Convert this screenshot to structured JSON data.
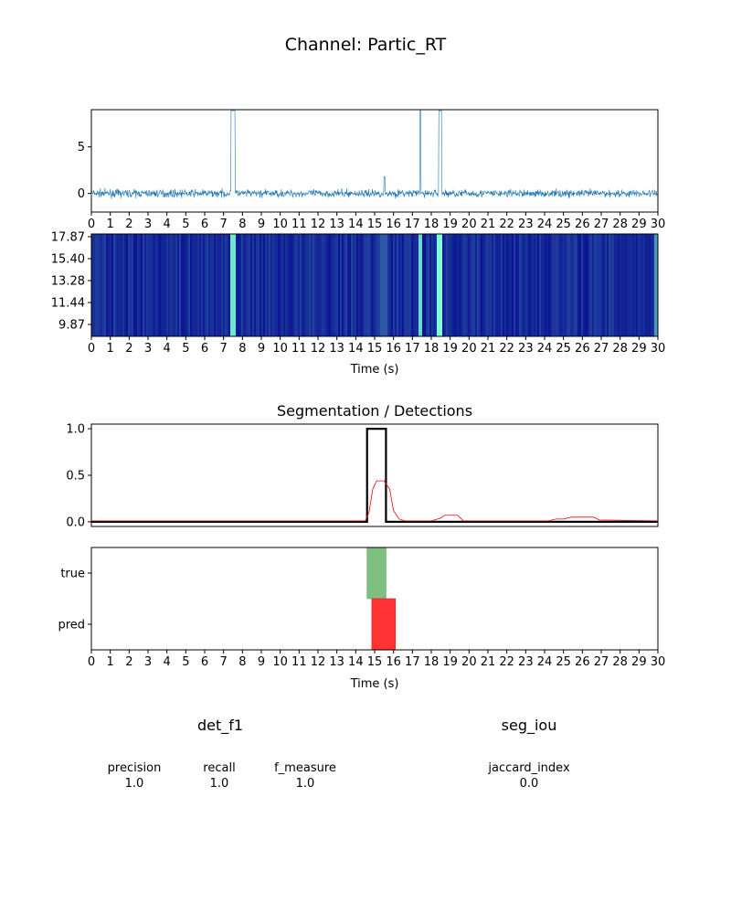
{
  "title": "Channel: Partic_RT",
  "colors": {
    "signal": "#1f77b4",
    "gt": "#000000",
    "prob": "#ff0000",
    "true_bar": "#7fbf7f",
    "pred_bar": "#ff3333",
    "spec_low": "#00008c",
    "spec_high": "#7fffd4"
  },
  "chart_data": [
    {
      "type": "line",
      "name": "signal",
      "xlim": [
        0,
        30
      ],
      "ylim": [
        -2,
        9
      ],
      "yticks": [
        "0",
        "5"
      ],
      "xticks": [
        "0",
        "1",
        "2",
        "3",
        "4",
        "5",
        "6",
        "7",
        "8",
        "9",
        "10",
        "11",
        "12",
        "13",
        "14",
        "15",
        "16",
        "17",
        "18",
        "19",
        "20",
        "21",
        "22",
        "23",
        "24",
        "25",
        "26",
        "27",
        "28",
        "29",
        "30"
      ],
      "noise_level": 0.4,
      "spikes": [
        {
          "start": 7.4,
          "end": 7.6,
          "value": 8.9
        },
        {
          "start": 17.4,
          "end": 17.45,
          "value": 8.9
        },
        {
          "start": 18.4,
          "end": 18.55,
          "value": 8.9
        },
        {
          "start": 15.5,
          "end": 15.55,
          "value": 1.8
        }
      ]
    },
    {
      "type": "heatmap",
      "name": "spectrogram",
      "xlim": [
        0,
        30
      ],
      "yticks": [
        "17.87",
        "15.40",
        "13.28",
        "11.44",
        "9.87"
      ],
      "xlabel": "Time (s)",
      "bright_bands": [
        {
          "start": 7.4,
          "end": 7.6,
          "intensity": 0.9
        },
        {
          "start": 17.35,
          "end": 17.5,
          "intensity": 0.85
        },
        {
          "start": 18.35,
          "end": 18.55,
          "intensity": 1.0
        },
        {
          "start": 15.3,
          "end": 15.6,
          "intensity": 0.35
        },
        {
          "start": 29.9,
          "end": 30.0,
          "intensity": 0.6
        }
      ]
    },
    {
      "type": "line",
      "name": "segmentation",
      "title": "Segmentation / Detections",
      "xlim": [
        0,
        30
      ],
      "ylim": [
        -0.05,
        1.05
      ],
      "yticks": [
        "0.0",
        "0.5",
        "1.0"
      ],
      "series": [
        {
          "role": "ground_truth",
          "x": [
            0,
            14.6,
            14.6,
            15.6,
            15.6,
            30
          ],
          "y": [
            0.0,
            0.0,
            1.0,
            1.0,
            0.0,
            0.0
          ]
        },
        {
          "role": "probability",
          "x": [
            0,
            14.5,
            14.7,
            14.9,
            15.1,
            15.5,
            15.8,
            16.0,
            16.3,
            16.6,
            18.0,
            18.5,
            18.7,
            19.4,
            19.7,
            24.2,
            24.6,
            25.0,
            25.4,
            26.6,
            26.9,
            30
          ],
          "y": [
            0.01,
            0.01,
            0.1,
            0.35,
            0.44,
            0.44,
            0.35,
            0.12,
            0.03,
            0.01,
            0.01,
            0.04,
            0.07,
            0.07,
            0.01,
            0.01,
            0.03,
            0.03,
            0.05,
            0.05,
            0.02,
            0.01
          ]
        }
      ]
    },
    {
      "type": "bar",
      "name": "detections",
      "xlim": [
        0,
        30
      ],
      "categories": [
        "true",
        "pred"
      ],
      "xticks": [
        "0",
        "1",
        "2",
        "3",
        "4",
        "5",
        "6",
        "7",
        "8",
        "9",
        "10",
        "11",
        "12",
        "13",
        "14",
        "15",
        "16",
        "17",
        "18",
        "19",
        "20",
        "21",
        "22",
        "23",
        "24",
        "25",
        "26",
        "27",
        "28",
        "29",
        "30"
      ],
      "xlabel": "Time (s)",
      "intervals": [
        {
          "row": "true",
          "start": 14.6,
          "end": 15.6
        },
        {
          "row": "pred",
          "start": 14.85,
          "end": 16.1
        }
      ]
    }
  ],
  "metrics": {
    "det_title": "det_f1",
    "seg_title": "seg_iou",
    "precision_label": "precision",
    "precision_value": "1.0",
    "recall_label": "recall",
    "recall_value": "1.0",
    "f_measure_label": "f_measure",
    "f_measure_value": "1.0",
    "jaccard_label": "jaccard_index",
    "jaccard_value": "0.0"
  }
}
